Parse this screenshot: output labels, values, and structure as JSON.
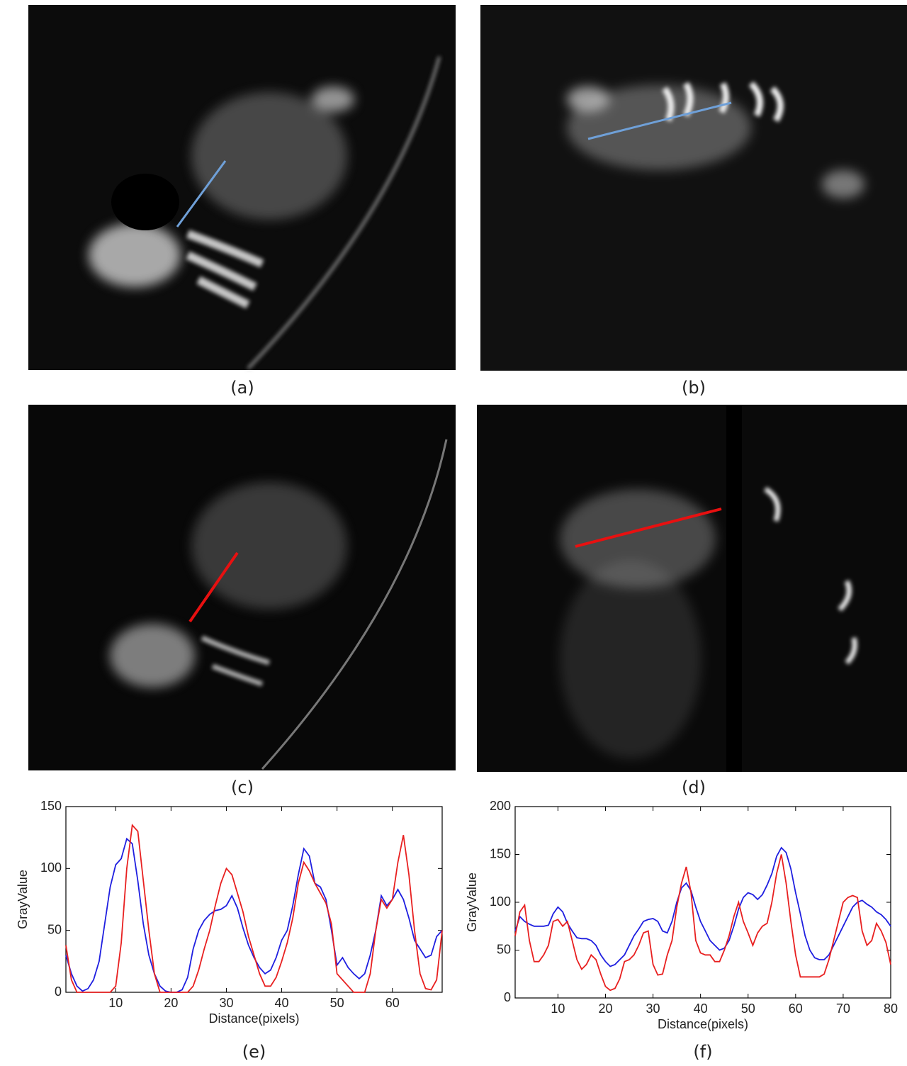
{
  "panels": [
    {
      "label": "(a)"
    },
    {
      "label": "(b)"
    },
    {
      "label": "(c)"
    },
    {
      "label": "(d)"
    }
  ],
  "chart_data": [
    {
      "type": "line",
      "caption": "(e)",
      "x_label": "Distance(pixels)",
      "y_label": "GrayValue",
      "xlim": [
        1,
        69
      ],
      "xticks": [
        10,
        20,
        30,
        40,
        50,
        60
      ],
      "ylim": [
        0,
        150
      ],
      "yticks": [
        0,
        50,
        100,
        150
      ],
      "x": [
        1,
        2,
        3,
        4,
        5,
        6,
        7,
        8,
        9,
        10,
        11,
        12,
        13,
        14,
        15,
        16,
        17,
        18,
        19,
        20,
        21,
        22,
        23,
        24,
        25,
        26,
        27,
        28,
        29,
        30,
        31,
        32,
        33,
        34,
        35,
        36,
        37,
        38,
        39,
        40,
        41,
        42,
        43,
        44,
        45,
        46,
        47,
        48,
        49,
        50,
        51,
        52,
        53,
        54,
        55,
        56,
        57,
        58,
        59,
        60,
        61,
        62,
        63,
        64,
        65,
        66,
        67,
        68,
        69
      ],
      "series": [
        {
          "color": "#1f1fe0",
          "values": [
            30,
            15,
            5,
            1,
            3,
            10,
            25,
            55,
            85,
            103,
            108,
            124,
            120,
            90,
            55,
            30,
            15,
            5,
            1,
            0,
            0,
            2,
            12,
            35,
            50,
            58,
            63,
            66,
            67,
            70,
            78,
            68,
            52,
            38,
            28,
            20,
            15,
            18,
            28,
            42,
            50,
            70,
            95,
            116,
            110,
            88,
            85,
            75,
            50,
            22,
            28,
            20,
            15,
            11,
            15,
            30,
            50,
            78,
            70,
            75,
            83,
            75,
            60,
            42,
            35,
            28,
            30,
            45,
            50
          ]
        },
        {
          "color": "#e82020",
          "values": [
            38,
            10,
            0,
            0,
            0,
            0,
            0,
            0,
            0,
            5,
            40,
            100,
            135,
            130,
            90,
            50,
            15,
            0,
            0,
            0,
            0,
            0,
            0,
            5,
            18,
            35,
            50,
            70,
            88,
            100,
            95,
            80,
            65,
            45,
            30,
            15,
            5,
            5,
            12,
            25,
            40,
            60,
            88,
            105,
            98,
            88,
            80,
            72,
            55,
            15,
            10,
            5,
            0,
            0,
            0,
            15,
            50,
            75,
            68,
            75,
            105,
            127,
            95,
            50,
            15,
            3,
            2,
            10,
            50
          ]
        }
      ]
    },
    {
      "type": "line",
      "caption": "(f)",
      "x_label": "Distance(pixels)",
      "y_label": "GrayValue",
      "xlim": [
        1,
        80
      ],
      "xticks": [
        10,
        20,
        30,
        40,
        50,
        60,
        70,
        80
      ],
      "ylim": [
        0,
        200
      ],
      "yticks": [
        0,
        50,
        100,
        150,
        200
      ],
      "x": [
        1,
        2,
        3,
        4,
        5,
        6,
        7,
        8,
        9,
        10,
        11,
        12,
        13,
        14,
        15,
        16,
        17,
        18,
        19,
        20,
        21,
        22,
        23,
        24,
        25,
        26,
        27,
        28,
        29,
        30,
        31,
        32,
        33,
        34,
        35,
        36,
        37,
        38,
        39,
        40,
        41,
        42,
        43,
        44,
        45,
        46,
        47,
        48,
        49,
        50,
        51,
        52,
        53,
        54,
        55,
        56,
        57,
        58,
        59,
        60,
        61,
        62,
        63,
        64,
        65,
        66,
        67,
        68,
        69,
        70,
        71,
        72,
        73,
        74,
        75,
        76,
        77,
        78,
        79,
        80
      ],
      "series": [
        {
          "color": "#1f1fe0",
          "values": [
            70,
            85,
            80,
            77,
            75,
            75,
            75,
            76,
            88,
            95,
            90,
            78,
            70,
            63,
            62,
            62,
            60,
            55,
            45,
            38,
            33,
            35,
            40,
            45,
            55,
            65,
            72,
            80,
            82,
            83,
            80,
            70,
            68,
            80,
            100,
            115,
            120,
            112,
            95,
            80,
            70,
            60,
            55,
            50,
            52,
            60,
            75,
            93,
            105,
            110,
            108,
            103,
            108,
            118,
            130,
            148,
            157,
            152,
            135,
            110,
            88,
            65,
            50,
            42,
            40,
            40,
            45,
            55,
            65,
            75,
            85,
            95,
            100,
            102,
            98,
            95,
            90,
            87,
            82,
            75
          ]
        },
        {
          "color": "#e82020",
          "values": [
            65,
            90,
            97,
            60,
            38,
            38,
            45,
            55,
            80,
            82,
            75,
            80,
            60,
            40,
            30,
            35,
            45,
            40,
            25,
            12,
            8,
            10,
            20,
            38,
            40,
            45,
            55,
            68,
            70,
            35,
            24,
            25,
            45,
            60,
            95,
            120,
            137,
            110,
            60,
            47,
            45,
            45,
            38,
            38,
            50,
            65,
            85,
            100,
            80,
            68,
            55,
            68,
            75,
            78,
            100,
            130,
            150,
            120,
            80,
            45,
            22,
            22,
            22,
            22,
            22,
            25,
            40,
            60,
            80,
            100,
            105,
            107,
            105,
            70,
            55,
            60,
            78,
            70,
            58,
            35
          ]
        }
      ]
    }
  ]
}
